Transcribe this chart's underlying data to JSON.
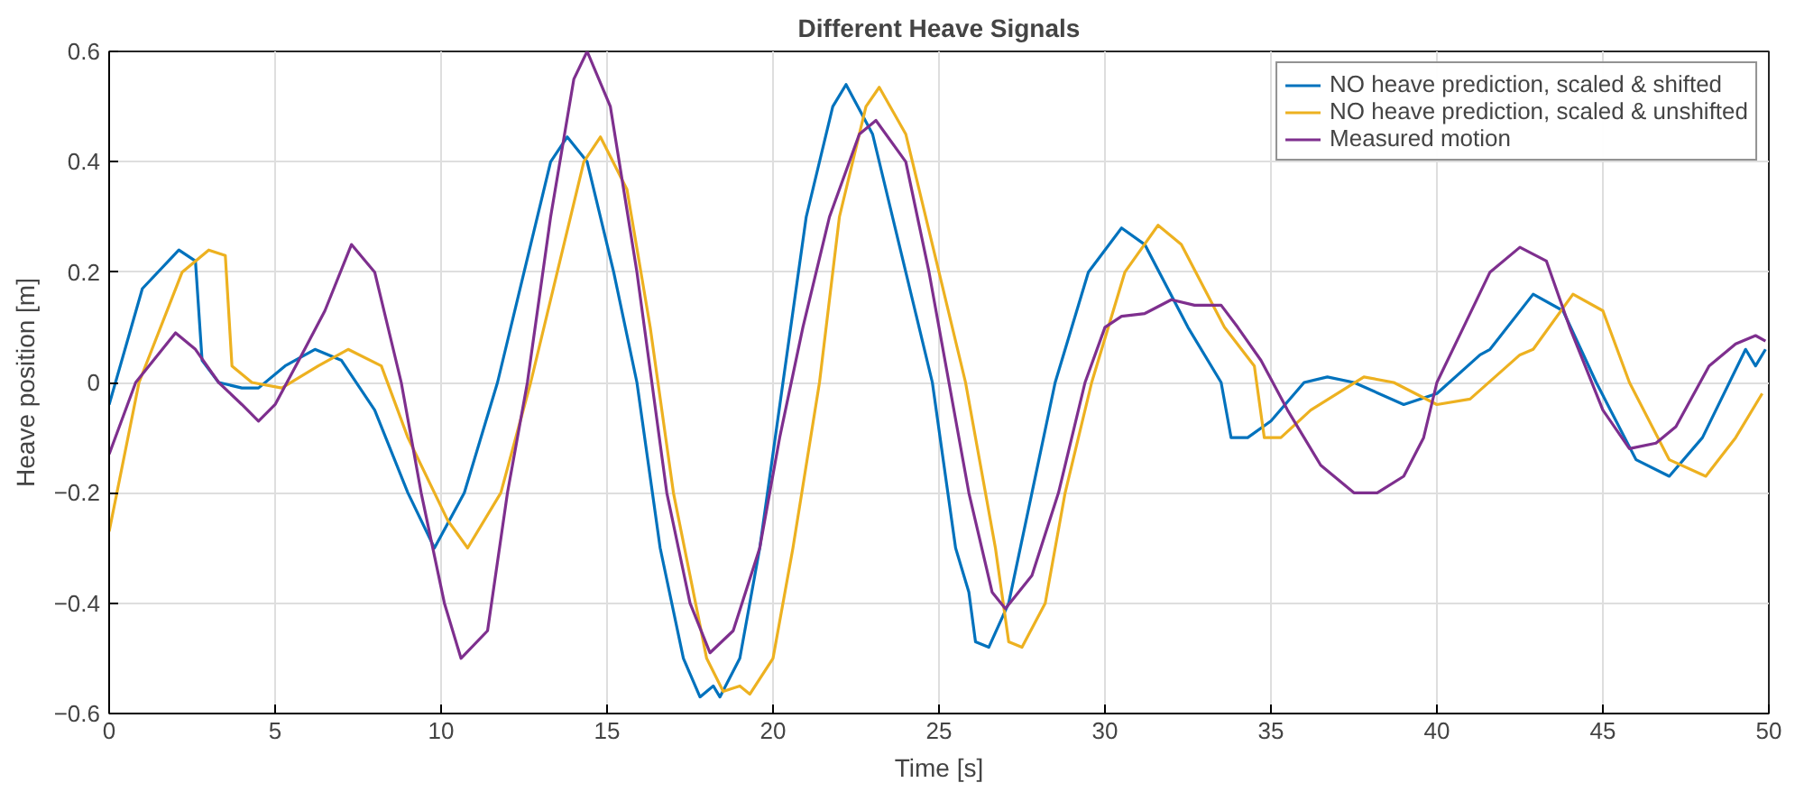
{
  "chart_data": {
    "type": "line",
    "title": "Different Heave Signals",
    "xlabel": "Time [s]",
    "ylabel": "Heave position [m]",
    "xlim": [
      0,
      50
    ],
    "ylim": [
      -0.6,
      0.6
    ],
    "xticks": [
      0,
      5,
      10,
      15,
      20,
      25,
      30,
      35,
      40,
      45,
      50
    ],
    "yticks": [
      -0.6,
      -0.4,
      -0.2,
      0,
      0.2,
      0.4,
      0.6
    ],
    "grid": true,
    "legend": "top right",
    "line_style": "solid",
    "marker": "none",
    "series": [
      {
        "name": "NO heave prediction, scaled & shifted",
        "color": "#0072bd",
        "x": [
          0,
          1,
          2.1,
          2.6,
          2.8,
          3.3,
          4,
          4.5,
          5.3,
          6.2,
          7,
          8,
          9,
          9.8,
          10.7,
          11.7,
          12.5,
          13.3,
          13.8,
          14.4,
          15.2,
          15.9,
          16.6,
          17.3,
          17.8,
          18.2,
          18.4,
          19,
          19.6,
          20.3,
          21,
          21.8,
          22.2,
          23,
          24,
          24.8,
          25.5,
          25.9,
          26.1,
          26.5,
          27.1,
          27.8,
          28.5,
          29.5,
          30.5,
          31.2,
          32.5,
          33.5,
          33.8,
          34.3,
          35,
          36,
          36.7,
          37.5,
          39,
          40,
          41.3,
          41.6,
          42.9,
          43.8,
          44.8,
          46,
          47,
          48,
          49.3,
          49.6,
          49.9
        ],
        "values": [
          -0.04,
          0.17,
          0.24,
          0.22,
          0.04,
          0,
          -0.01,
          -0.01,
          0.03,
          0.06,
          0.04,
          -0.05,
          -0.2,
          -0.3,
          -0.2,
          0,
          0.2,
          0.4,
          0.445,
          0.4,
          0.2,
          0,
          -0.3,
          -0.5,
          -0.57,
          -0.55,
          -0.57,
          -0.5,
          -0.3,
          0,
          0.3,
          0.5,
          0.54,
          0.45,
          0.2,
          0,
          -0.3,
          -0.38,
          -0.47,
          -0.48,
          -0.4,
          -0.2,
          0,
          0.2,
          0.28,
          0.25,
          0.1,
          0,
          -0.1,
          -0.1,
          -0.07,
          0,
          0.01,
          0,
          -0.04,
          -0.02,
          0.05,
          0.06,
          0.16,
          0.13,
          0,
          -0.14,
          -0.17,
          -0.1,
          0.06,
          0.03,
          0.06
        ]
      },
      {
        "name": "NO heave prediction, scaled & unshifted",
        "color": "#edb120",
        "x": [
          0,
          0.9,
          2.2,
          3,
          3.5,
          3.7,
          4.3,
          5.2,
          6.3,
          7.2,
          8.2,
          9,
          10.2,
          10.8,
          11.8,
          12.7,
          13.5,
          14.3,
          14.8,
          15.6,
          16.3,
          17,
          18,
          18.5,
          19,
          19.3,
          20,
          20.6,
          21.4,
          22,
          22.8,
          23.2,
          24,
          25,
          25.8,
          26.7,
          27.1,
          27.5,
          28.2,
          28.8,
          29.6,
          30.6,
          31.6,
          32.3,
          33.6,
          34.5,
          34.8,
          35.3,
          36.2,
          37.8,
          38.7,
          40,
          41,
          42.5,
          42.9,
          44.1,
          45,
          45.8,
          47,
          48.1,
          49,
          49.8
        ],
        "values": [
          -0.27,
          0,
          0.2,
          0.24,
          0.23,
          0.03,
          0,
          -0.01,
          0.03,
          0.06,
          0.03,
          -0.1,
          -0.25,
          -0.3,
          -0.2,
          0,
          0.2,
          0.4,
          0.445,
          0.35,
          0.1,
          -0.2,
          -0.5,
          -0.56,
          -0.55,
          -0.565,
          -0.5,
          -0.3,
          0,
          0.3,
          0.5,
          0.535,
          0.45,
          0.2,
          0,
          -0.3,
          -0.47,
          -0.48,
          -0.4,
          -0.2,
          0,
          0.2,
          0.285,
          0.25,
          0.1,
          0.03,
          -0.1,
          -0.1,
          -0.05,
          0.01,
          0,
          -0.04,
          -0.03,
          0.05,
          0.06,
          0.16,
          0.13,
          0,
          -0.14,
          -0.17,
          -0.1,
          -0.02
        ]
      },
      {
        "name": "Measured motion",
        "color": "#7e2f8e",
        "x": [
          0,
          0.8,
          2,
          2.6,
          3.3,
          4,
          4.5,
          5,
          5.8,
          6.5,
          7.3,
          8,
          8.8,
          9.4,
          10.1,
          10.6,
          11.4,
          12,
          12.6,
          13.3,
          14,
          14.4,
          15.1,
          15.9,
          16.8,
          17.5,
          18.1,
          18.8,
          19.6,
          20.2,
          20.9,
          21.7,
          22.6,
          23.1,
          24,
          24.7,
          25.3,
          25.9,
          26.6,
          27,
          27.8,
          28.6,
          29.4,
          30,
          30.5,
          31.2,
          32,
          32.7,
          33.5,
          34,
          34.7,
          35.5,
          36.5,
          37.5,
          38.2,
          39,
          39.6,
          40,
          40.8,
          41.6,
          42.5,
          43.3,
          44,
          45,
          45.8,
          46.6,
          47.2,
          48.2,
          49,
          49.6,
          49.9
        ],
        "values": [
          -0.13,
          0,
          0.09,
          0.06,
          0,
          -0.04,
          -0.07,
          -0.04,
          0.05,
          0.13,
          0.25,
          0.2,
          0,
          -0.2,
          -0.4,
          -0.5,
          -0.45,
          -0.2,
          0,
          0.3,
          0.55,
          0.6,
          0.5,
          0.2,
          -0.2,
          -0.4,
          -0.49,
          -0.45,
          -0.3,
          -0.1,
          0.1,
          0.3,
          0.45,
          0.475,
          0.4,
          0.2,
          0,
          -0.2,
          -0.38,
          -0.41,
          -0.35,
          -0.2,
          0,
          0.1,
          0.12,
          0.125,
          0.15,
          0.14,
          0.14,
          0.1,
          0.04,
          -0.05,
          -0.15,
          -0.2,
          -0.2,
          -0.17,
          -0.1,
          0,
          0.1,
          0.2,
          0.245,
          0.22,
          0.1,
          -0.05,
          -0.12,
          -0.11,
          -0.08,
          0.03,
          0.07,
          0.085,
          0.075
        ]
      }
    ]
  }
}
